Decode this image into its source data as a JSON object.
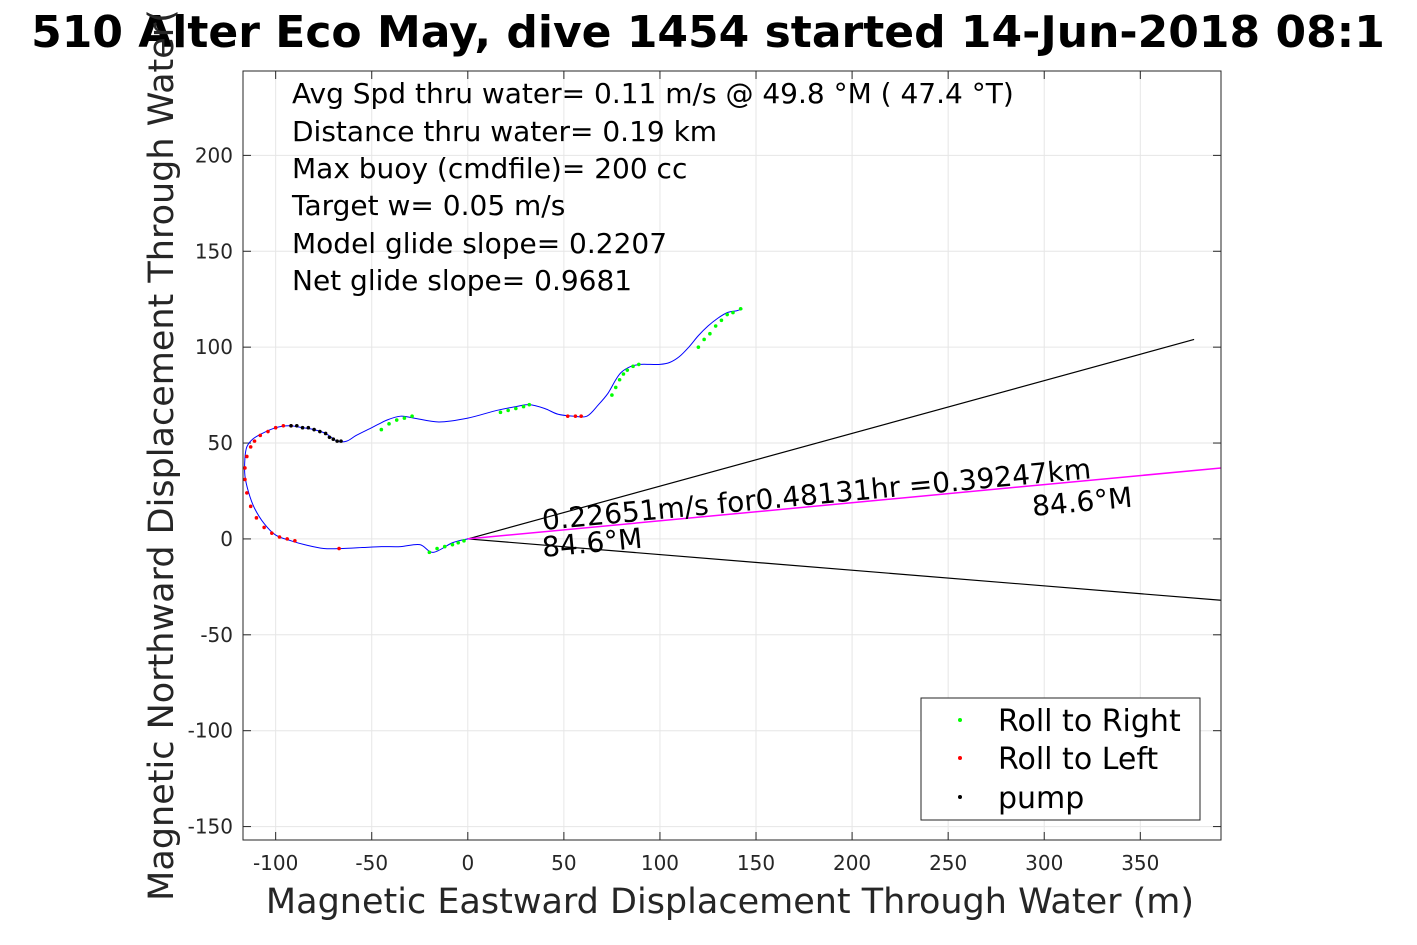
{
  "chart_data": {
    "type": "scatter",
    "title": "510 Alter Eco May, dive 1454 started 14-Jun-2018 08:1",
    "xlabel": "Magnetic Eastward Displacement Through Water (m)",
    "ylabel": "Magnetic Northward Displacement Through Water(",
    "xlim": [
      -117,
      392
    ],
    "ylim": [
      -157,
      244
    ],
    "xticks": [
      -100,
      -50,
      0,
      50,
      100,
      150,
      200,
      250,
      300,
      350
    ],
    "yticks": [
      -150,
      -100,
      -50,
      0,
      50,
      100,
      150,
      200
    ],
    "grid": true,
    "stats_text": [
      "Avg Spd thru water=  0.11 m/s @  49.8 °M ( 47.4 °T)",
      "Distance thru water=  0.19 km",
      "Max buoy (cmdfile)= 200 cc",
      "Target w= 0.05 m/s",
      "Model glide slope= 0.2207",
      "Net glide slope= 0.9681"
    ],
    "track": {
      "name": "",
      "color": "#0000ff",
      "x": [
        0,
        -8,
        -18,
        -25,
        -35,
        -45,
        -55,
        -65,
        -75,
        -85,
        -92,
        -100,
        -106,
        -111,
        -114,
        -116,
        -116,
        -115,
        -112,
        -107,
        -100,
        -93,
        -86,
        -80,
        -74,
        -68,
        -63,
        -58,
        -50,
        -42,
        -35,
        -28,
        -15,
        0,
        15,
        25,
        32,
        40,
        47,
        55,
        62,
        68,
        73,
        77,
        80,
        85,
        90,
        95,
        100,
        105,
        110,
        115,
        120,
        125,
        130,
        135,
        140,
        143
      ],
      "y": [
        0,
        -2,
        -7,
        -3,
        -4,
        -4,
        -4.5,
        -5,
        -5,
        -3,
        -1,
        2,
        8,
        16,
        24,
        33,
        42,
        48,
        52,
        55,
        58,
        59,
        58,
        57,
        55,
        51,
        51,
        54,
        58,
        62,
        64,
        63,
        61,
        63,
        67,
        69,
        70,
        68,
        65,
        64,
        64,
        70,
        76,
        83,
        87,
        90,
        91,
        91,
        91,
        92,
        95,
        100,
        106,
        111,
        115,
        118,
        119,
        120
      ]
    },
    "roll_right": {
      "name": "Roll to Right",
      "color": "#00ff00",
      "x": [
        -2,
        -5,
        -8,
        -12,
        -16,
        -20,
        -45,
        -41,
        -37,
        -33,
        -29,
        17,
        21,
        25,
        29,
        32,
        75,
        77,
        79,
        81,
        83,
        86,
        89,
        120,
        123,
        126,
        129,
        132,
        135,
        138,
        142
      ],
      "y": [
        -1,
        -2,
        -3,
        -4,
        -5,
        -7,
        57,
        60,
        62,
        63,
        64,
        66,
        67,
        68,
        69,
        70,
        75,
        79,
        83,
        86,
        88,
        90,
        91,
        100,
        104,
        107,
        111,
        114,
        117,
        118,
        120
      ]
    },
    "roll_left": {
      "name": "Roll to Left",
      "color": "#ff0000",
      "x": [
        -67,
        -90,
        -94,
        -98,
        -102,
        -106,
        -110,
        -113,
        -115,
        -116,
        -116,
        -115,
        -113,
        -111,
        -108,
        -104,
        -100,
        -96,
        -92,
        52,
        56,
        59
      ],
      "y": [
        -5,
        -1,
        0,
        1,
        3,
        6,
        11,
        17,
        24,
        31,
        37,
        43,
        48,
        51,
        54,
        56,
        58,
        59,
        59,
        64,
        64,
        64
      ]
    },
    "pump": {
      "name": "pump",
      "color": "#000000",
      "x": [
        -92,
        -89,
        -86,
        -83,
        -80,
        -77,
        -74,
        -72,
        -70,
        -68,
        -66
      ],
      "y": [
        59,
        59,
        58,
        58,
        57,
        56,
        55,
        53,
        52,
        51,
        51
      ]
    },
    "current_vector": {
      "color": "#ff00ff",
      "x": [
        0,
        392
      ],
      "y": [
        0,
        37
      ]
    },
    "envelope_lines": [
      {
        "x": [
          0,
          378
        ],
        "y": [
          0,
          104
        ]
      },
      {
        "x": [
          0,
          392
        ],
        "y": [
          0,
          -32
        ]
      }
    ],
    "annotations": {
      "vector_label": "0.22651m/s for0.48131hr =0.39247km",
      "heading_near": "84.6°M",
      "heading_far": "84.6°M"
    },
    "legend": {
      "placement": "bottom-right",
      "entries": [
        "Roll to Right",
        "Roll to Left",
        "pump"
      ]
    }
  }
}
